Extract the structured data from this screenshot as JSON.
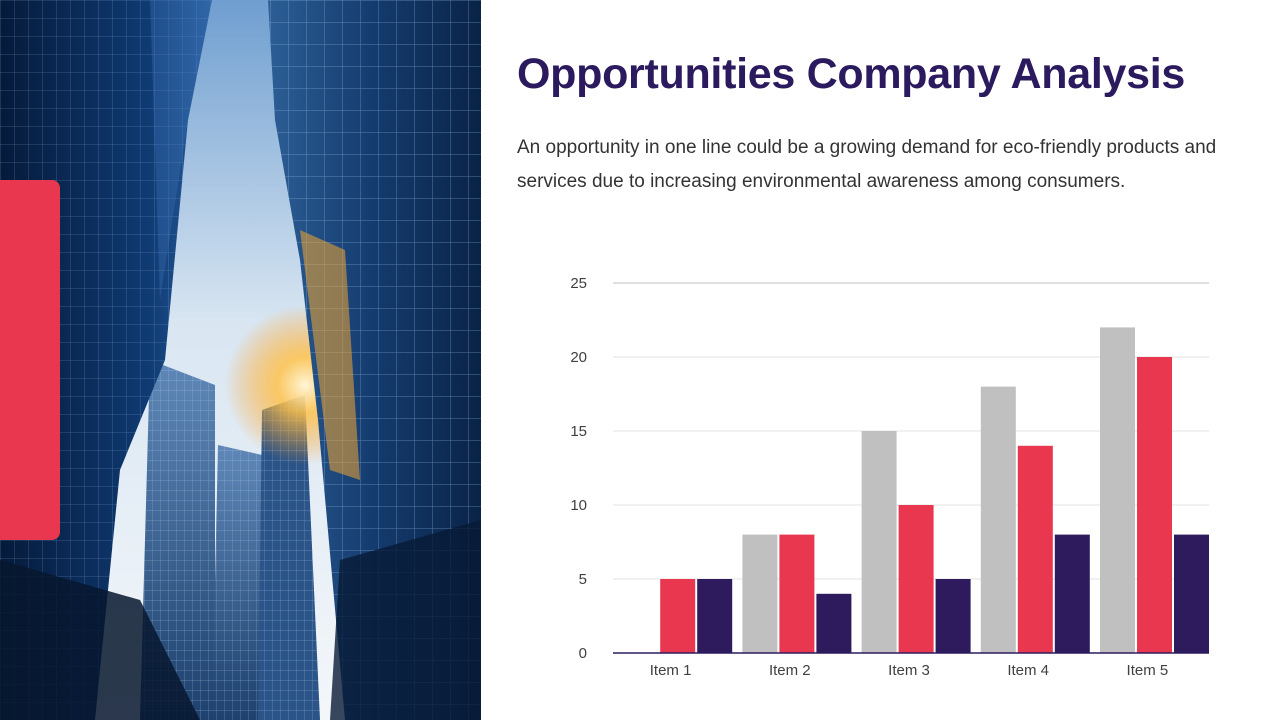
{
  "slide": {
    "title": "Opportunities Company Analysis",
    "description": "An opportunity in one line could be a growing demand for eco-friendly products and services due to increasing environmental awareness among consumers."
  },
  "colors": {
    "accent": "#e8374f",
    "title": "#2b1a5e",
    "series_gray": "#c0c0c0",
    "series_red": "#e8374f",
    "series_navy": "#2d1b5e"
  },
  "chart_data": {
    "type": "bar",
    "title": "",
    "xlabel": "",
    "ylabel": "",
    "categories": [
      "Item 1",
      "Item 2",
      "Item 3",
      "Item 4",
      "Item 5"
    ],
    "series": [
      {
        "values": [
          0,
          8,
          15,
          18,
          22
        ],
        "color": "#c0c0c0"
      },
      {
        "values": [
          5,
          8,
          10,
          14,
          20
        ],
        "color": "#e8374f"
      },
      {
        "values": [
          5,
          4,
          5,
          8,
          8
        ],
        "color": "#2d1b5e"
      }
    ],
    "ylim": [
      0,
      25
    ],
    "yticks": [
      0,
      5,
      10,
      15,
      20,
      25
    ],
    "grid": true,
    "legend": "none"
  }
}
